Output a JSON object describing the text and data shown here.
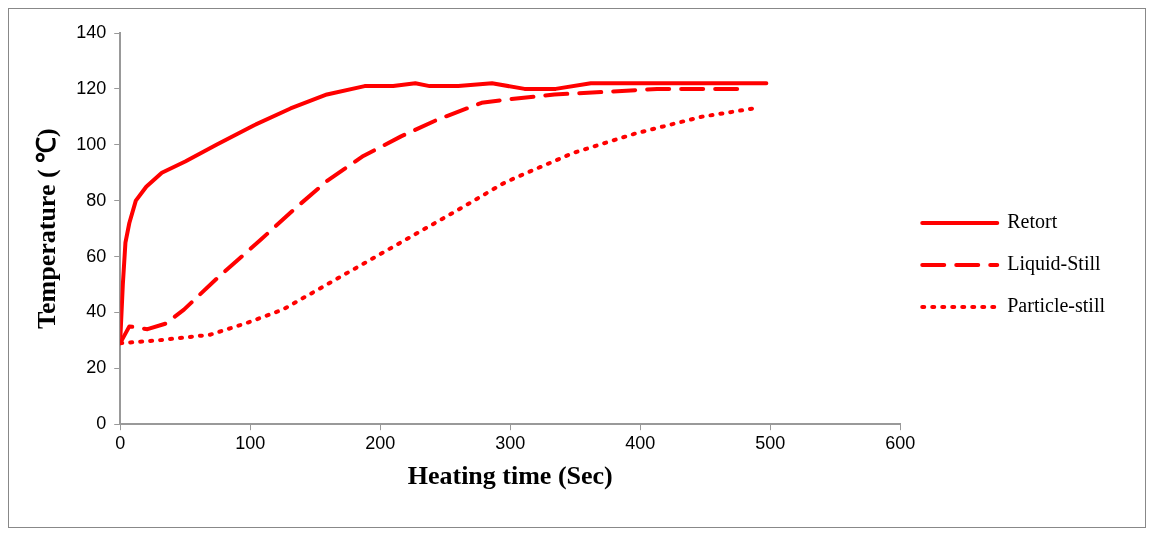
{
  "chart_data": {
    "type": "line",
    "xlabel": "Heating time (Sec)",
    "ylabel": "Temperature ( ℃)",
    "xlim": [
      0,
      600
    ],
    "xticks": [
      0,
      100,
      200,
      300,
      400,
      500,
      600
    ],
    "ylim": [
      0,
      140
    ],
    "yticks": [
      0,
      20,
      40,
      60,
      80,
      100,
      120,
      140
    ],
    "grid": false,
    "legend": "right",
    "marker": "none",
    "series": [
      {
        "name": "Retort",
        "color": "#ff0000",
        "line_style": "solid",
        "x": [
          0,
          2,
          4,
          7,
          12,
          20,
          32,
          50,
          74,
          103,
          131,
          159,
          188,
          210,
          227,
          238,
          260,
          286,
          311,
          335,
          362,
          400,
          430,
          470,
          497
        ],
        "values": [
          30,
          50,
          65,
          72,
          80,
          85,
          90,
          94,
          100,
          107,
          113,
          118,
          121,
          121,
          122,
          121,
          121,
          122,
          120,
          120,
          122,
          122,
          122,
          122,
          122
        ]
      },
      {
        "name": "Liquid-Still",
        "color": "#ff0000",
        "line_style": "dashed",
        "x": [
          0,
          7,
          21,
          35,
          49,
          74,
          108,
          134,
          159,
          187,
          216,
          244,
          278,
          294,
          334,
          376,
          413,
          450,
          483
        ],
        "values": [
          29,
          35,
          34,
          36,
          41,
          52,
          66,
          77,
          87,
          96,
          103,
          109,
          115,
          116,
          118,
          119,
          120,
          120,
          120
        ]
      },
      {
        "name": "Particle-still",
        "color": "#ff0000",
        "line_style": "dotted",
        "x": [
          0,
          29,
          69,
          96,
          125,
          159,
          193,
          227,
          261,
          294,
          303,
          348,
          396,
          447,
          487
        ],
        "values": [
          29,
          30,
          32,
          36,
          41,
          50,
          59,
          68,
          77,
          86,
          88,
          97,
          104,
          110,
          113
        ]
      }
    ]
  }
}
